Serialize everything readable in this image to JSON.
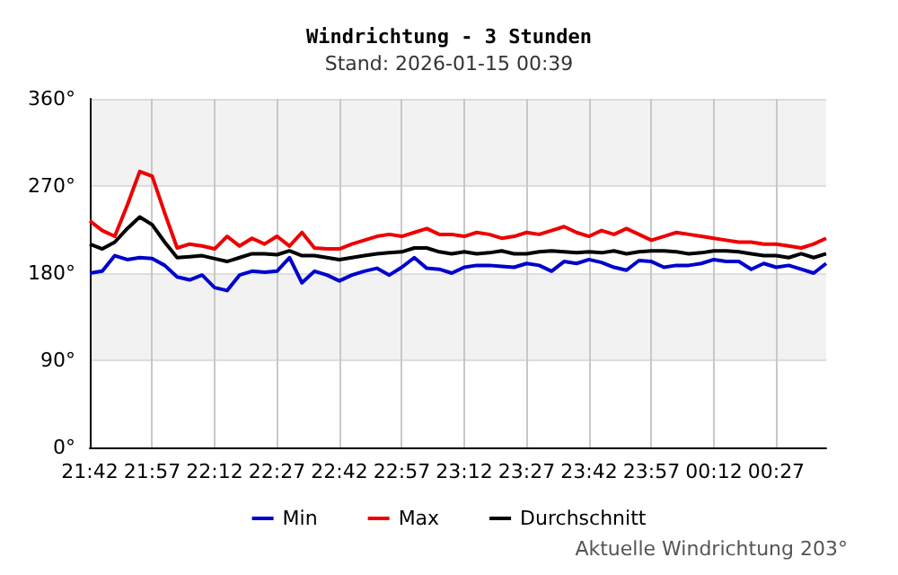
{
  "chart_data": {
    "type": "line",
    "title": "Windrichtung - 3 Stunden",
    "subtitle": "Stand: 2026-01-15 00:39",
    "annotations": [
      "Aktuelle Windrichtung 203°"
    ],
    "x": [
      "2026-01-14T21:42",
      "2026-01-14T21:45",
      "2026-01-14T21:48",
      "2026-01-14T21:51",
      "2026-01-14T21:54",
      "2026-01-14T21:57",
      "2026-01-14T22:00",
      "2026-01-14T22:03",
      "2026-01-14T22:06",
      "2026-01-14T22:09",
      "2026-01-14T22:12",
      "2026-01-14T22:15",
      "2026-01-14T22:18",
      "2026-01-14T22:21",
      "2026-01-14T22:24",
      "2026-01-14T22:27",
      "2026-01-14T22:30",
      "2026-01-14T22:33",
      "2026-01-14T22:36",
      "2026-01-14T22:39",
      "2026-01-14T22:42",
      "2026-01-14T22:45",
      "2026-01-14T22:48",
      "2026-01-14T22:51",
      "2026-01-14T22:54",
      "2026-01-14T22:57",
      "2026-01-14T23:00",
      "2026-01-14T23:03",
      "2026-01-14T23:06",
      "2026-01-14T23:09",
      "2026-01-14T23:12",
      "2026-01-14T23:15",
      "2026-01-14T23:18",
      "2026-01-14T23:21",
      "2026-01-14T23:24",
      "2026-01-14T23:27",
      "2026-01-14T23:30",
      "2026-01-14T23:33",
      "2026-01-14T23:36",
      "2026-01-14T23:39",
      "2026-01-14T23:42",
      "2026-01-14T23:45",
      "2026-01-14T23:48",
      "2026-01-14T23:51",
      "2026-01-14T23:54",
      "2026-01-14T23:57",
      "2026-01-15T00:00",
      "2026-01-15T00:03",
      "2026-01-15T00:06",
      "2026-01-15T00:09",
      "2026-01-15T00:12",
      "2026-01-15T00:15",
      "2026-01-15T00:18",
      "2026-01-15T00:21",
      "2026-01-15T00:24",
      "2026-01-15T00:27",
      "2026-01-15T00:30",
      "2026-01-15T00:33",
      "2026-01-15T00:36",
      "2026-01-15T00:39"
    ],
    "series": [
      {
        "name": "Min",
        "color": "#0000cc",
        "values": [
          180,
          182,
          198,
          194,
          196,
          195,
          188,
          176,
          173,
          178,
          165,
          162,
          178,
          182,
          181,
          182,
          196,
          170,
          182,
          178,
          172,
          178,
          182,
          185,
          178,
          186,
          196,
          185,
          184,
          180,
          186,
          188,
          188,
          187,
          186,
          190,
          188,
          182,
          192,
          190,
          194,
          191,
          186,
          183,
          193,
          192,
          186,
          188,
          188,
          190,
          194,
          192,
          192,
          184,
          190,
          186,
          188,
          184,
          180,
          190
        ]
      },
      {
        "name": "Max",
        "color": "#ee0000",
        "values": [
          234,
          224,
          218,
          250,
          285,
          280,
          242,
          206,
          210,
          208,
          205,
          218,
          208,
          216,
          210,
          218,
          208,
          222,
          206,
          205,
          205,
          210,
          214,
          218,
          220,
          218,
          222,
          226,
          220,
          220,
          218,
          222,
          220,
          216,
          218,
          222,
          220,
          224,
          228,
          222,
          218,
          224,
          220,
          226,
          220,
          214,
          218,
          222,
          220,
          218,
          216,
          214,
          212,
          212,
          210,
          210,
          208,
          206,
          210,
          216
        ]
      },
      {
        "name": "Durchschnitt",
        "color": "#000000",
        "values": [
          210,
          205,
          212,
          226,
          238,
          230,
          212,
          196,
          197,
          198,
          195,
          192,
          196,
          200,
          200,
          199,
          203,
          198,
          198,
          196,
          194,
          196,
          198,
          200,
          201,
          202,
          206,
          206,
          202,
          200,
          202,
          200,
          201,
          203,
          200,
          200,
          202,
          203,
          202,
          201,
          202,
          201,
          203,
          200,
          202,
          203,
          203,
          202,
          200,
          201,
          203,
          203,
          202,
          200,
          198,
          198,
          196,
          200,
          196,
          200
        ]
      }
    ],
    "xlim": [
      "2026-01-14T21:42",
      "2026-01-15T00:39"
    ],
    "xticks": [
      {
        "value": "2026-01-14T21:42",
        "label": "21:42"
      },
      {
        "value": "2026-01-14T21:57",
        "label": "21:57"
      },
      {
        "value": "2026-01-14T22:12",
        "label": "22:12"
      },
      {
        "value": "2026-01-14T22:27",
        "label": "22:27"
      },
      {
        "value": "2026-01-14T22:42",
        "label": "22:42"
      },
      {
        "value": "2026-01-14T22:57",
        "label": "22:57"
      },
      {
        "value": "2026-01-14T23:12",
        "label": "23:12"
      },
      {
        "value": "2026-01-14T23:27",
        "label": "23:27"
      },
      {
        "value": "2026-01-14T23:42",
        "label": "23:42"
      },
      {
        "value": "2026-01-14T23:57",
        "label": "23:57"
      },
      {
        "value": "2026-01-15T00:12",
        "label": "00:12"
      },
      {
        "value": "2026-01-15T00:27",
        "label": "00:27"
      }
    ],
    "ylim": [
      0,
      360
    ],
    "yticks": [
      {
        "value": 0,
        "label": "0°"
      },
      {
        "value": 90,
        "label": "90°"
      },
      {
        "value": 180,
        "label": "180°"
      },
      {
        "value": 270,
        "label": "270°"
      },
      {
        "value": 360,
        "label": "360°"
      }
    ],
    "grid": true,
    "legend": "bottom",
    "marker": "none",
    "line_style": "solid"
  }
}
